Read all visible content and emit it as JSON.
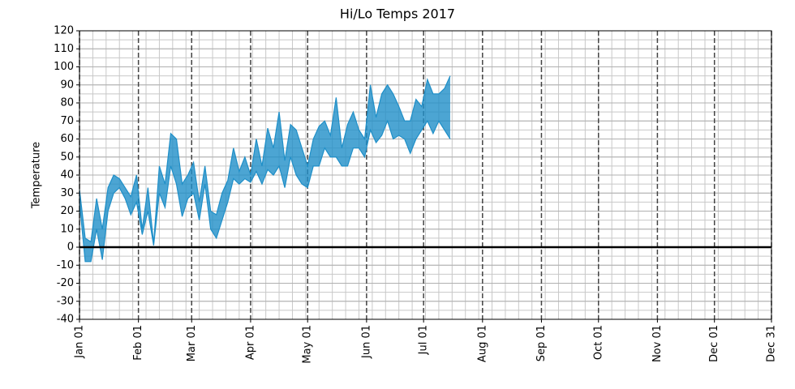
{
  "chart_data": {
    "type": "fill_between",
    "title": "Hi/Lo Temps 2017",
    "ylabel": "Temperature",
    "x": [
      "2017-01-01",
      "2017-01-04",
      "2017-01-07",
      "2017-01-10",
      "2017-01-13",
      "2017-01-16",
      "2017-01-19",
      "2017-01-22",
      "2017-01-25",
      "2017-01-28",
      "2017-01-31",
      "2017-02-03",
      "2017-02-06",
      "2017-02-09",
      "2017-02-12",
      "2017-02-15",
      "2017-02-18",
      "2017-02-21",
      "2017-02-24",
      "2017-02-27",
      "2017-03-02",
      "2017-03-05",
      "2017-03-08",
      "2017-03-11",
      "2017-03-14",
      "2017-03-17",
      "2017-03-20",
      "2017-03-23",
      "2017-03-26",
      "2017-03-29",
      "2017-04-01",
      "2017-04-04",
      "2017-04-07",
      "2017-04-10",
      "2017-04-13",
      "2017-04-16",
      "2017-04-19",
      "2017-04-22",
      "2017-04-25",
      "2017-04-28",
      "2017-05-01",
      "2017-05-04",
      "2017-05-07",
      "2017-05-10",
      "2017-05-13",
      "2017-05-16",
      "2017-05-19",
      "2017-05-22",
      "2017-05-25",
      "2017-05-28",
      "2017-05-31",
      "2017-06-03",
      "2017-06-06",
      "2017-06-09",
      "2017-06-12",
      "2017-06-15",
      "2017-06-18",
      "2017-06-21",
      "2017-06-24",
      "2017-06-27",
      "2017-06-30",
      "2017-07-03",
      "2017-07-06",
      "2017-07-09",
      "2017-07-12",
      "2017-07-15"
    ],
    "series": [
      {
        "color": "#1f8fc8",
        "values": [
          32,
          5,
          3,
          27,
          10,
          33,
          40,
          38,
          33,
          28,
          40,
          10,
          33,
          2,
          45,
          35,
          63,
          60,
          35,
          40,
          47,
          25,
          45,
          20,
          18,
          30,
          37,
          55,
          42,
          50,
          40,
          60,
          45,
          66,
          55,
          75,
          48,
          68,
          65,
          55,
          45,
          60,
          67,
          70,
          62,
          83,
          55,
          68,
          75,
          65,
          60,
          90,
          72,
          85,
          90,
          85,
          78,
          70,
          70,
          82,
          78,
          93,
          85,
          85,
          88,
          95
        ]
      },
      {
        "color": "#1f8fc8",
        "values": [
          25,
          -8,
          -8,
          10,
          -7,
          20,
          30,
          33,
          27,
          18,
          25,
          7,
          20,
          1,
          30,
          22,
          45,
          35,
          17,
          27,
          30,
          15,
          35,
          10,
          5,
          15,
          25,
          38,
          35,
          38,
          36,
          42,
          35,
          43,
          40,
          45,
          33,
          50,
          40,
          35,
          33,
          45,
          45,
          55,
          50,
          50,
          45,
          45,
          55,
          55,
          50,
          65,
          58,
          62,
          70,
          60,
          62,
          60,
          52,
          60,
          65,
          70,
          63,
          70,
          65,
          60
        ]
      }
    ],
    "xlim": [
      "2017-01-01",
      "2017-12-31"
    ],
    "xticks": [
      {
        "value": "2017-01-01",
        "label": "Jan 01"
      },
      {
        "value": "2017-02-01",
        "label": "Feb 01"
      },
      {
        "value": "2017-03-01",
        "label": "Mar 01"
      },
      {
        "value": "2017-04-01",
        "label": "Apr 01"
      },
      {
        "value": "2017-05-01",
        "label": "May 01"
      },
      {
        "value": "2017-06-01",
        "label": "Jun 01"
      },
      {
        "value": "2017-07-01",
        "label": "Jul 01"
      },
      {
        "value": "2017-08-01",
        "label": "Aug 01"
      },
      {
        "value": "2017-09-01",
        "label": "Sep 01"
      },
      {
        "value": "2017-10-01",
        "label": "Oct 01"
      },
      {
        "value": "2017-11-01",
        "label": "Nov 01"
      },
      {
        "value": "2017-12-01",
        "label": "Dec 01"
      },
      {
        "value": "2017-12-31",
        "label": "Dec 31"
      }
    ],
    "ylim": [
      -40,
      120
    ],
    "yticks": [
      -40,
      -30,
      -20,
      -10,
      0,
      10,
      20,
      30,
      40,
      50,
      60,
      70,
      80,
      90,
      100,
      110,
      120
    ],
    "grid": true,
    "minor_grid": true,
    "zero_line": true
  }
}
